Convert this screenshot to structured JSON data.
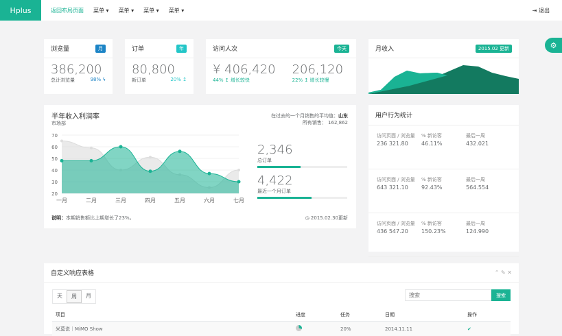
{
  "nav": {
    "brand": "Hplus",
    "items": [
      "返回布局页面",
      "菜单 ▾",
      "菜单 ▾",
      "菜单 ▾",
      "菜单 ▾"
    ],
    "logout": "退出"
  },
  "stats": [
    {
      "title": "浏览量",
      "badge": "月",
      "badge_color": "#1c84c6",
      "value": "386,200",
      "label": "总计浏览量",
      "pct": "98% ϟ",
      "pct_color": "#1c84c6"
    },
    {
      "title": "订单",
      "badge": "年",
      "badge_color": "#23c6c8",
      "value": "80,800",
      "label": "新订单",
      "pct": "20% ↥",
      "pct_color": "#23c6c8"
    }
  ],
  "visits": {
    "title": "访问人次",
    "badge": "今天",
    "value1": "¥ 406,420",
    "sub1": "44% ↥ 增长较快",
    "value2": "206,120",
    "sub2": "22% ↥ 增长较慢"
  },
  "income": {
    "title": "月收入",
    "badge": "2015.02 更新"
  },
  "profit": {
    "title": "半年收入利润率",
    "subtitle": "市场部",
    "avg_label": "在过去的一个月销售的平均值：",
    "avg_value": "山东",
    "total_label": "所有销售：",
    "total_value": "162,862",
    "orders": [
      {
        "value": "2,346",
        "label": "总订单",
        "progress": 48
      },
      {
        "value": "4,422",
        "label": "最近一个月订单",
        "progress": 60
      }
    ],
    "note_label": "说明：",
    "note": "本期销售额比上期增长了23%。",
    "updated": "◷ 2015.02.30更新"
  },
  "chart_data": {
    "type": "area",
    "categories": [
      "一月",
      "二月",
      "三月",
      "四月",
      "五月",
      "六月",
      "七月"
    ],
    "ylim": [
      20,
      70
    ],
    "yticks": [
      20,
      30,
      40,
      50,
      60,
      70
    ],
    "series": [
      {
        "values": [
          65,
          59,
          40,
          51,
          36,
          25,
          40
        ],
        "color": "#dcdcdc"
      },
      {
        "values": [
          48,
          48,
          60,
          39,
          56,
          37,
          30
        ],
        "color": "#1ab394"
      }
    ]
  },
  "behavior": {
    "title": "用户行为统计",
    "rows": [
      {
        "c1": "访问页面 / 浏览量",
        "v1": "236 321.80",
        "c2": "% 新访客",
        "v2": "46.11%",
        "c3": "最后一周",
        "v3": "432.021"
      },
      {
        "c1": "访问页面 / 浏览量",
        "v1": "643 321.10",
        "c2": "% 新访客",
        "v2": "92.43%",
        "c3": "最后一周",
        "v3": "564.554"
      },
      {
        "c1": "访问页面 / 浏览量",
        "v1": "436 547.20",
        "c2": "% 新访客",
        "v2": "150.23%",
        "c3": "最后一周",
        "v3": "124.990"
      }
    ]
  },
  "table": {
    "title": "自定义响应表格",
    "periods": [
      "天",
      "周",
      "月"
    ],
    "search_placeholder": "搜索",
    "search_button": "搜索",
    "headers": [
      "项目",
      "进度",
      "任务",
      "日期",
      "操作"
    ],
    "rows": [
      {
        "project": "米莫说｜MiMO Show",
        "task": "20%",
        "date": "2014.11.11",
        "action": "✔"
      }
    ]
  }
}
